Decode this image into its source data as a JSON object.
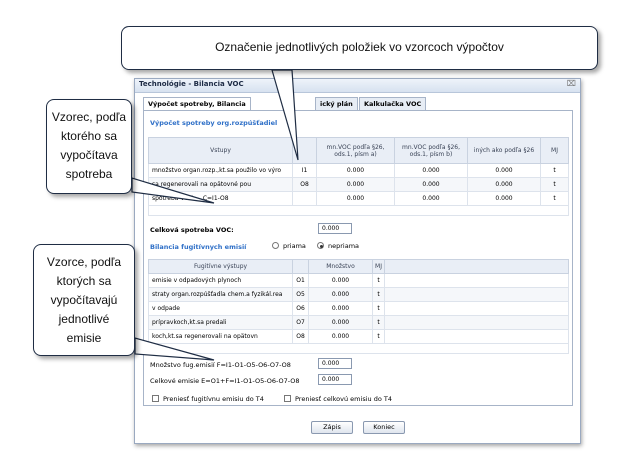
{
  "window": {
    "title": "Technológie - Bilancia VOC",
    "close_glyph": "⌧"
  },
  "tabs": [
    {
      "label": "Výpočet spotreby, Bilancia"
    },
    {
      "label": "ický plán"
    },
    {
      "label": "Kalkulačka VOC"
    }
  ],
  "consumption": {
    "section_title": "Výpočet spotreby org.rozpúšťadiel",
    "columns": [
      "Vstupy",
      "",
      "mn.VOC podľa §26, ods.1, písm a)",
      "mn.VOC podľa §26, ods.1, písm b)",
      "iných ako podľa §26",
      "MJ"
    ],
    "rows": [
      {
        "name": "množstvo organ.rozp.,kt.sa použilo vo výro",
        "code": "I1",
        "a": "0.000",
        "b": "0.000",
        "c": "0.000",
        "mj": "t"
      },
      {
        "name": "sa regenerovali na opätovné pou",
        "code": "O8",
        "a": "0.000",
        "b": "0.000",
        "c": "0.000",
        "mj": "t"
      },
      {
        "name": "spotreba VOC",
        "code": "",
        "formula": "C=I1-O8",
        "a": "0.000",
        "b": "0.000",
        "c": "0.000",
        "mj": "t"
      }
    ],
    "total_label": "Celková spotreba VOC:",
    "total_value": "0.000"
  },
  "fugitive": {
    "section_title": "Bilancia fugitívnych emisií",
    "radio_direct": "priama",
    "radio_indirect": "nepriama",
    "columns": [
      "Fugitívne výstupy",
      "",
      "Množstvo",
      "MJ"
    ],
    "rows": [
      {
        "name": "emisie v odpadových plynoch",
        "code": "O1",
        "value": "0.000",
        "mj": "t"
      },
      {
        "name": "straty organ.rozpúšťadla chem.a fyzikál.rea",
        "code": "O5",
        "value": "0.000",
        "mj": "t"
      },
      {
        "name": "v odpade",
        "code": "O6",
        "value": "0.000",
        "mj": "t"
      },
      {
        "name": "prípravkoch,kt.sa predali",
        "code": "O7",
        "value": "0.000",
        "mj": "t"
      },
      {
        "name": "koch,kt.sa regenerovali na opätovn",
        "code": "O8",
        "value": "0.000",
        "mj": "t"
      }
    ],
    "fugitive_label": "Množstvo fug.emisií F=I1-O1-O5-O6-O7-O8",
    "fugitive_value": "0.000",
    "total_label": "Celkové emisie E=O1+F=I1-O1-O5-O6-O7-O8",
    "total_value": "0.000",
    "check_fugitive": "Preniesť fugitívnu emisiu do T4",
    "check_total": "Preniesť celkovú emisiu do T4"
  },
  "buttons": {
    "save": "Zápis",
    "close": "Koniec"
  },
  "callouts": {
    "top": "Označenie jednotlivých položiek vo vzorcoch výpočtov",
    "mid": [
      "Vzorec, podľa",
      "ktorého sa",
      "vypočítava",
      "spotreba"
    ],
    "bot": [
      "Vzorce, podľa",
      "ktorých sa",
      "vypočítavajú",
      "jednotlivé",
      "emisie"
    ]
  }
}
